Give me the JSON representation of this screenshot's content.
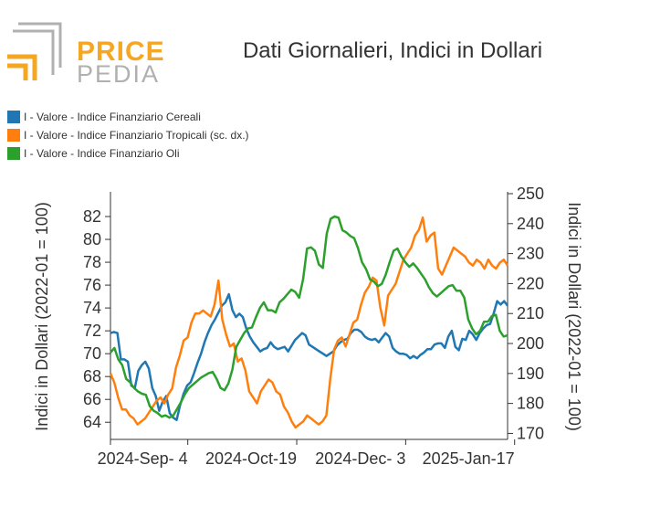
{
  "header": {
    "logo_line1": "PRICE",
    "logo_line2": "PEDIA",
    "title": "Dati Giornalieri, Indici in Dollari"
  },
  "colors": {
    "cereali": "#1f77b4",
    "tropicali": "#ff7f0e",
    "oli": "#2ca02c",
    "logo_orange": "#f5a623",
    "logo_grey": "#b0b0b0"
  },
  "chart_data": {
    "type": "line",
    "title": "Dati Giornalieri, Indici in Dollari",
    "xlabel": "",
    "ylabel_left": "Indici in Dollari (2022-01 = 100)",
    "ylabel_right": "Indici in Dollari (2022-01 = 100)",
    "ylim_left": [
      62.5,
      84
    ],
    "ylim_right": [
      168,
      250
    ],
    "yticks_left": [
      64,
      66,
      68,
      70,
      72,
      74,
      76,
      78,
      80,
      82
    ],
    "yticks_right": [
      170,
      180,
      190,
      200,
      210,
      220,
      230,
      240,
      250
    ],
    "xlim": [
      0,
      113
    ],
    "xtick_positions": [
      22,
      53,
      84,
      115
    ],
    "xtick_labels": [
      "2024-Sep- 4",
      "2024-Oct-19",
      "2024-Dec- 3",
      "2025-Jan-17"
    ],
    "series": [
      {
        "name": "I - Valore - Indice Finanziario Cereali",
        "axis": "left",
        "values": [
          71.8,
          71.9,
          71.8,
          69.5,
          69.5,
          69.3,
          67.2,
          67,
          68.5,
          69,
          69.3,
          68.7,
          67,
          66.3,
          65,
          65.8,
          66.3,
          64.8,
          64.4,
          64.2,
          65.5,
          66.5,
          67.2,
          67.5,
          68.3,
          69.2,
          70,
          71,
          71.8,
          72.5,
          73,
          73.6,
          74.2,
          74.5,
          75.2,
          73.8,
          73.2,
          73.5,
          73.2,
          72.2,
          71.5,
          71,
          70.6,
          70.2,
          70.4,
          70.5,
          71,
          70.6,
          70.4,
          70.5,
          70.6,
          70.2,
          70.7,
          71.2,
          71.5,
          71.8,
          71.6,
          70.8,
          70.6,
          70.4,
          70.2,
          70,
          69.8,
          70,
          70.2,
          70.7,
          71,
          71.2,
          71.3,
          71.8,
          72.1,
          72.1,
          71.9,
          71.5,
          71.3,
          71.2,
          71.3,
          71,
          71.4,
          71.8,
          71.5,
          70.5,
          70.2,
          70,
          70,
          69.9,
          69.6,
          69.8,
          69.6,
          69.9,
          70.1,
          70.4,
          70.4,
          70.8,
          70.9,
          70.9,
          70.5,
          71.5,
          72,
          70.6,
          70.3,
          71.3,
          71.2,
          72,
          71.7,
          71.2,
          71.8,
          72.2,
          72.5,
          72.6,
          73.5,
          74.6,
          74.3,
          74.6,
          74.2
        ]
      },
      {
        "name": "I - Valore - Indice Finanziario Tropicali (sc. dx.)",
        "axis": "right",
        "values": [
          190,
          187,
          182,
          178,
          178,
          176,
          175,
          173,
          174,
          175,
          177,
          179,
          181,
          182,
          180,
          183,
          185,
          192,
          196,
          201,
          202,
          207,
          210,
          210,
          211,
          210,
          209,
          213,
          221,
          208,
          203,
          199,
          200,
          194,
          195,
          191,
          184,
          182,
          180,
          184,
          186,
          188,
          187,
          184,
          183,
          179,
          177,
          174,
          172,
          173,
          174,
          176,
          175,
          174,
          173,
          174,
          176,
          188,
          198,
          201,
          202,
          199,
          203,
          207,
          208,
          213,
          217,
          219,
          222,
          221,
          212,
          206,
          216,
          218,
          220,
          224,
          228,
          230,
          232,
          236,
          238,
          242,
          234,
          236,
          237,
          225,
          223,
          226,
          229,
          232,
          231,
          230,
          229,
          227,
          226,
          228,
          227,
          225,
          228,
          226,
          225,
          227,
          228,
          226
        ]
      },
      {
        "name": "I - Valore - Indice Finanziario Oli",
        "axis": "left",
        "values": [
          70.1,
          70.5,
          69.5,
          69,
          67.8,
          67.5,
          67,
          66.7,
          66.5,
          66.4,
          65.4,
          65,
          64.8,
          64.5,
          64.6,
          64.4,
          64.6,
          65.2,
          65.8,
          66.5,
          67,
          67.3,
          67.6,
          67.9,
          68.1,
          68.3,
          68.4,
          67.8,
          67,
          66.8,
          67.4,
          68.6,
          70.6,
          71.2,
          71.8,
          72.2,
          72.3,
          73.2,
          74,
          74.5,
          73.8,
          73.8,
          73.6,
          74.5,
          74.8,
          75.2,
          75.6,
          75.4,
          74.9,
          76.5,
          79.2,
          79.3,
          79,
          77.8,
          77.5,
          80.5,
          81.8,
          82,
          81.9,
          80.8,
          80.6,
          80.3,
          80.1,
          79.2,
          78,
          77.4,
          76.5,
          76.3,
          75.9,
          76.1,
          76.9,
          78,
          79,
          79.2,
          78.5,
          78,
          77.6,
          77.9,
          77.5,
          77,
          76.5,
          75.8,
          75.3,
          75,
          75.3,
          75.6,
          75.9,
          76,
          75.5,
          75.5,
          74.9,
          73,
          72.2,
          71.7,
          72,
          72.8,
          72.8,
          73.3,
          73.4,
          72,
          71.5,
          71.6
        ]
      }
    ]
  }
}
